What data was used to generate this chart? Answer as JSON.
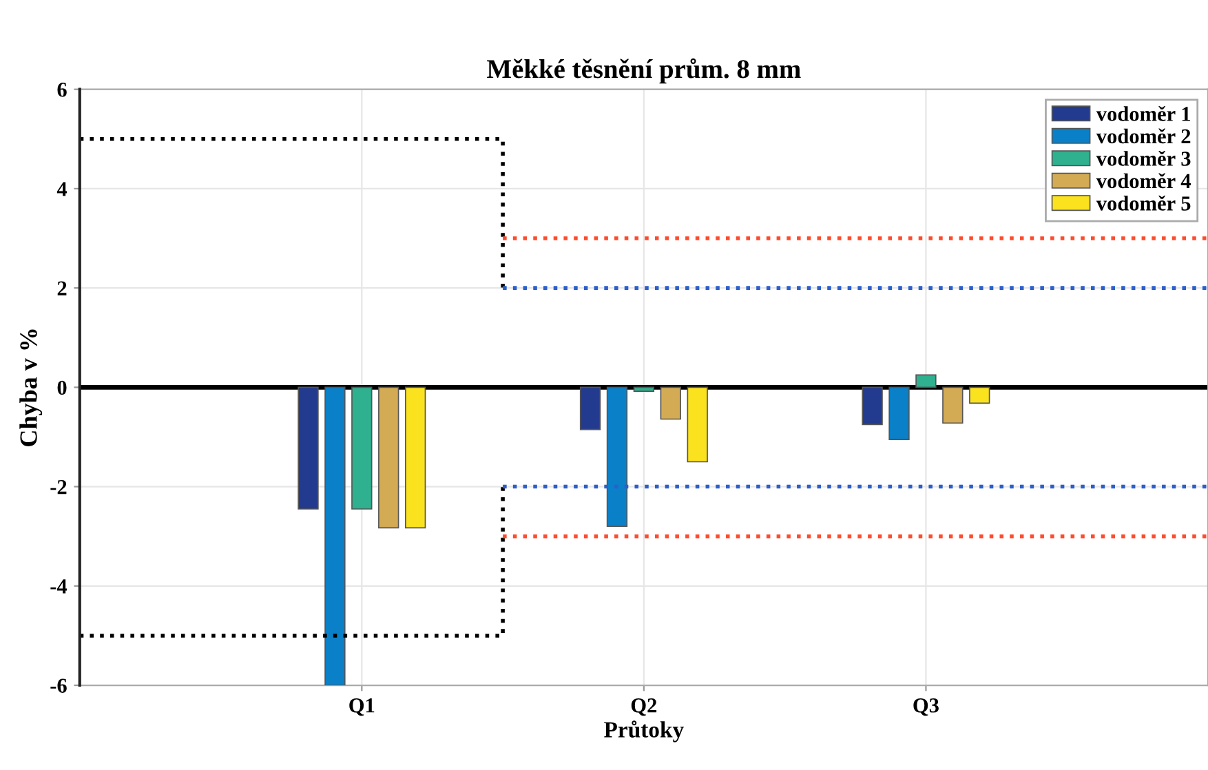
{
  "chart_data": {
    "type": "bar",
    "title": "Měkké těsnění prům. 8 mm",
    "xlabel": "Průtoky",
    "ylabel": "Chyba v %",
    "categories": [
      null,
      null,
      "Q1",
      null,
      "Q2",
      null,
      "Q3",
      null,
      null
    ],
    "ylim": [
      -6,
      6
    ],
    "yticks": [
      -6,
      -4,
      -2,
      0,
      2,
      4,
      6
    ],
    "grid": true,
    "legend": "top right",
    "ref_lines": [
      {
        "axis": "y",
        "value": 0,
        "color": "#000000",
        "line_style": "solid"
      }
    ],
    "series": [
      {
        "name": "vodoměr 1",
        "color": "#233b8f",
        "values": [
          null,
          null,
          -2.45,
          null,
          -0.85,
          null,
          -0.75,
          null,
          null
        ]
      },
      {
        "name": "vodoměr 2",
        "color": "#0a80c8",
        "values": [
          null,
          null,
          -6,
          null,
          -2.8,
          null,
          -1.05,
          null,
          null
        ]
      },
      {
        "name": "vodoměr 3",
        "color": "#2fb08f",
        "values": [
          null,
          null,
          -2.45,
          null,
          -0.08,
          null,
          0.25,
          null,
          null
        ]
      },
      {
        "name": "vodoměr 4",
        "color": "#d4ab55",
        "values": [
          null,
          null,
          -2.83,
          null,
          -0.64,
          null,
          -0.72,
          null,
          null
        ]
      },
      {
        "name": "vodoměr 5",
        "color": "#fbe21e",
        "values": [
          null,
          null,
          -2.83,
          null,
          -1.5,
          null,
          -0.32,
          null,
          null
        ]
      },
      {
        "type": "step",
        "color": "#000000",
        "line_style": "dotted",
        "values": [
          5,
          5,
          5,
          2,
          null,
          null,
          null,
          null,
          null
        ]
      },
      {
        "type": "step",
        "color": "#000000",
        "line_style": "dotted",
        "values": [
          -5,
          -5,
          -5,
          -2,
          null,
          null,
          null,
          null,
          null
        ]
      },
      {
        "type": "line",
        "color": "#ff4b2b",
        "line_style": "dotted",
        "values": [
          null,
          null,
          null,
          3,
          3,
          3,
          3,
          3,
          3
        ]
      },
      {
        "type": "line",
        "color": "#ff4b2b",
        "line_style": "dotted",
        "values": [
          null,
          null,
          null,
          -3,
          -3,
          -3,
          -3,
          -3,
          -3
        ]
      },
      {
        "type": "line",
        "color": "#2d5fcc",
        "line_style": "dotted",
        "values": [
          null,
          null,
          null,
          2,
          2,
          2,
          2,
          2,
          2
        ]
      },
      {
        "type": "line",
        "color": "#2d5fcc",
        "line_style": "dotted",
        "values": [
          null,
          null,
          null,
          -2,
          -2,
          -2,
          -2,
          -2,
          -2
        ]
      }
    ]
  }
}
